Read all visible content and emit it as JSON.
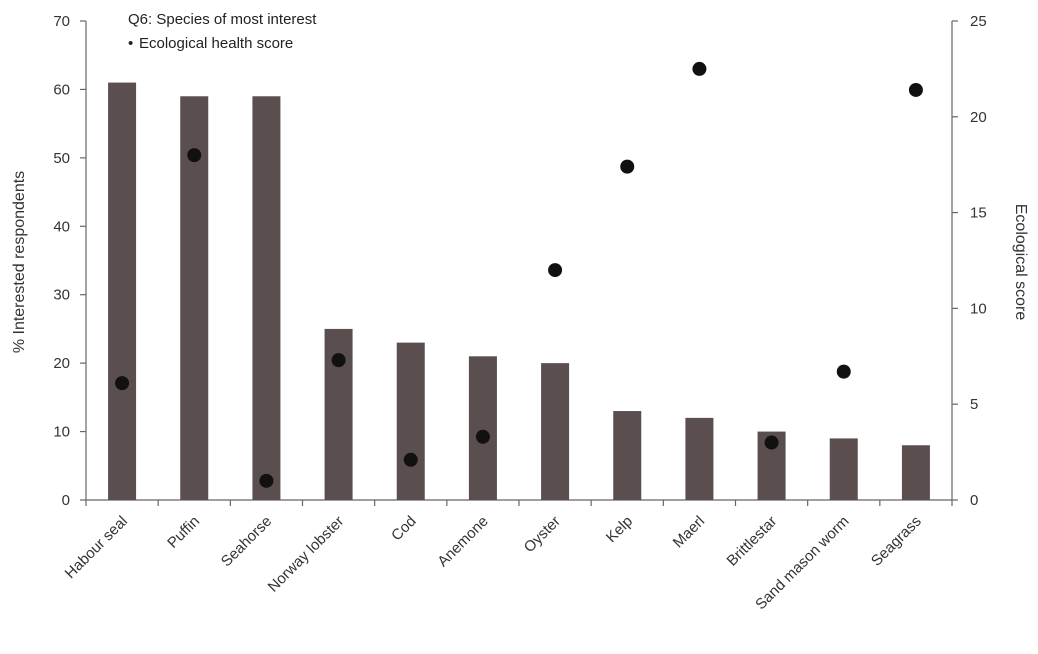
{
  "chart_data": {
    "type": "bar",
    "legend": {
      "title": "Q6: Species of most interest",
      "marker_label": "Ecological health score",
      "marker_glyph": "•",
      "placement": "top-left"
    },
    "categories": [
      "Habour seal",
      "Puffin",
      "Seahorse",
      "Norway lobster",
      "Cod",
      "Anemone",
      "Oyster",
      "Kelp",
      "Maerl",
      "Brittlestar",
      "Sand mason worm",
      "Seagrass"
    ],
    "series": [
      {
        "name": "Q6: Species of most interest",
        "type": "bar",
        "axis": "left",
        "color": "#5a4e4e",
        "values": [
          61,
          59,
          59,
          25,
          23,
          21,
          20,
          13,
          12,
          10,
          9,
          8
        ]
      },
      {
        "name": "Ecological health score",
        "type": "scatter",
        "axis": "right",
        "color": "#111111",
        "values": [
          6.1,
          18,
          1.0,
          7.3,
          2.1,
          3.3,
          12,
          17.4,
          22.5,
          3.0,
          6.7,
          21.4
        ]
      }
    ],
    "ylabel": "% Interested respondents",
    "y2label": "Ecological score",
    "xlabel": "",
    "ylim": [
      0,
      70
    ],
    "y2lim": [
      0,
      25
    ],
    "yticks": [
      0,
      10,
      20,
      30,
      40,
      50,
      60,
      70
    ],
    "y2ticks": [
      0,
      5,
      10,
      15,
      20,
      25
    ],
    "grid": false
  }
}
